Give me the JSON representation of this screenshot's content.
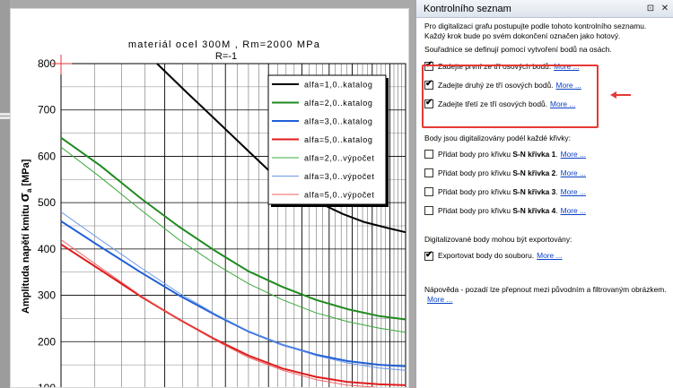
{
  "panel": {
    "title": "Kontrolního seznam",
    "pin_icon": "pin-icon",
    "close_icon": "close-icon",
    "intro": "Pro digitalizaci grafu postupujte podle tohoto kontrolního seznamu. Každý krok bude po svém dokončení označen jako hotový.",
    "axes_intro": "Souřadnice se definují pomocí vytvoření bodů na osách.",
    "axis_steps": [
      {
        "text": "Zadejte první ze tří osových bodů.",
        "link": "More ...",
        "checked": true
      },
      {
        "text": "Zadejte druhý ze tří osových bodů.",
        "link": "More ...",
        "checked": true
      },
      {
        "text": "Zadejte třetí ze tří osových bodů.",
        "link": "More ...",
        "checked": true
      }
    ],
    "curves_intro": "Body jsou digitalizovány podél každé křivky:",
    "curve_steps": [
      {
        "prefix": "Přidat body pro křivku ",
        "bold": "S-N křivka 1",
        "suffix": ".",
        "link": "More ...",
        "checked": false
      },
      {
        "prefix": "Přidat body pro křivku ",
        "bold": "S-N křivka 2",
        "suffix": ".",
        "link": "More ...",
        "checked": false
      },
      {
        "prefix": "Přidat body pro křivku ",
        "bold": "S-N křivka 3",
        "suffix": ".",
        "link": "More ...",
        "checked": false
      },
      {
        "prefix": "Přidat body pro křivku ",
        "bold": "S-N křivka 4",
        "suffix": ".",
        "link": "More ...",
        "checked": false
      }
    ],
    "export_intro": "Digitalizované body mohou být exportovány:",
    "export_step": {
      "text": "Exportovat body do souboru.",
      "link": "More ...",
      "checked": true
    },
    "help_text": "Nápověda - pozadí lze přepnout mezi původním a filtrovaným obrázkem.",
    "help_link": "More ...",
    "highlight_color": "#e53935"
  },
  "chart_data": {
    "type": "line",
    "title": "materiál ocel 300M , Rm=2000 MPa",
    "subtitle": "R=-1",
    "ylabel": "Amplituda napětí kmitu σa [MPa]",
    "ylabel_parts": {
      "main": "Amplituda napětí kmitu ",
      "sigma": "σ",
      "sub": "a",
      "unit": " [MPa]"
    },
    "y_ticks": [
      "800",
      "700",
      "600",
      "500",
      "400",
      "300",
      "200",
      "100"
    ],
    "ylim": [
      100,
      800
    ],
    "x_scale": "log",
    "xlim": [
      1,
      10
    ],
    "grid": true,
    "legend_position": "top-right",
    "series": [
      {
        "name": "alfa=1,0..katalog",
        "color": "#000000",
        "width": 2,
        "points": [
          [
            1.9,
            800
          ],
          [
            2.3,
            740
          ],
          [
            2.8,
            680
          ],
          [
            3.4,
            620
          ],
          [
            4.0,
            570
          ],
          [
            4.8,
            530
          ],
          [
            5.6,
            500
          ],
          [
            6.6,
            475
          ],
          [
            7.6,
            458
          ],
          [
            8.8,
            446
          ],
          [
            10,
            436
          ]
        ]
      },
      {
        "name": "alfa=2,0..katalog",
        "color": "#1f8a1f",
        "width": 2,
        "points": [
          [
            1,
            640
          ],
          [
            1.3,
            580
          ],
          [
            1.7,
            510
          ],
          [
            2.2,
            448
          ],
          [
            2.8,
            396
          ],
          [
            3.5,
            352
          ],
          [
            4.4,
            318
          ],
          [
            5.5,
            290
          ],
          [
            6.8,
            270
          ],
          [
            8.4,
            255
          ],
          [
            10,
            248
          ]
        ]
      },
      {
        "name": "alfa=3,0..katalog",
        "color": "#1f5fd6",
        "width": 2,
        "points": [
          [
            1,
            460
          ],
          [
            1.3,
            405
          ],
          [
            1.7,
            350
          ],
          [
            2.2,
            300
          ],
          [
            2.8,
            258
          ],
          [
            3.5,
            222
          ],
          [
            4.4,
            193
          ],
          [
            5.5,
            172
          ],
          [
            6.8,
            158
          ],
          [
            8.4,
            150
          ],
          [
            10,
            147
          ]
        ]
      },
      {
        "name": "alfa=5,0..katalog",
        "color": "#e01b1b",
        "width": 2,
        "points": [
          [
            1,
            410
          ],
          [
            1.3,
            355
          ],
          [
            1.7,
            298
          ],
          [
            2.2,
            248
          ],
          [
            2.8,
            205
          ],
          [
            3.5,
            170
          ],
          [
            4.4,
            142
          ],
          [
            5.5,
            124
          ],
          [
            6.8,
            113
          ],
          [
            8.4,
            108
          ],
          [
            10,
            106
          ]
        ]
      },
      {
        "name": "alfa=2,0..výpočet",
        "color": "#3aa83a",
        "width": 1,
        "points": [
          [
            1,
            620
          ],
          [
            1.3,
            555
          ],
          [
            1.7,
            485
          ],
          [
            2.2,
            420
          ],
          [
            2.8,
            368
          ],
          [
            3.5,
            325
          ],
          [
            4.4,
            290
          ],
          [
            5.5,
            262
          ],
          [
            6.8,
            243
          ],
          [
            8.4,
            229
          ],
          [
            10,
            220
          ]
        ]
      },
      {
        "name": "alfa=3,0..výpočet",
        "color": "#6a96ea",
        "width": 1,
        "points": [
          [
            1,
            480
          ],
          [
            1.3,
            420
          ],
          [
            1.7,
            360
          ],
          [
            2.2,
            305
          ],
          [
            2.8,
            260
          ],
          [
            3.5,
            223
          ],
          [
            4.4,
            193
          ],
          [
            5.5,
            170
          ],
          [
            6.8,
            154
          ],
          [
            8.4,
            143
          ],
          [
            10,
            138
          ]
        ]
      },
      {
        "name": "alfa=5,0..výpočet",
        "color": "#f06060",
        "width": 1,
        "points": [
          [
            1,
            420
          ],
          [
            1.3,
            360
          ],
          [
            1.7,
            300
          ],
          [
            2.2,
            247
          ],
          [
            2.8,
            203
          ],
          [
            3.5,
            166
          ],
          [
            4.4,
            138
          ],
          [
            5.5,
            118
          ],
          [
            6.8,
            106
          ],
          [
            8.4,
            101
          ],
          [
            10,
            100
          ]
        ]
      }
    ]
  }
}
